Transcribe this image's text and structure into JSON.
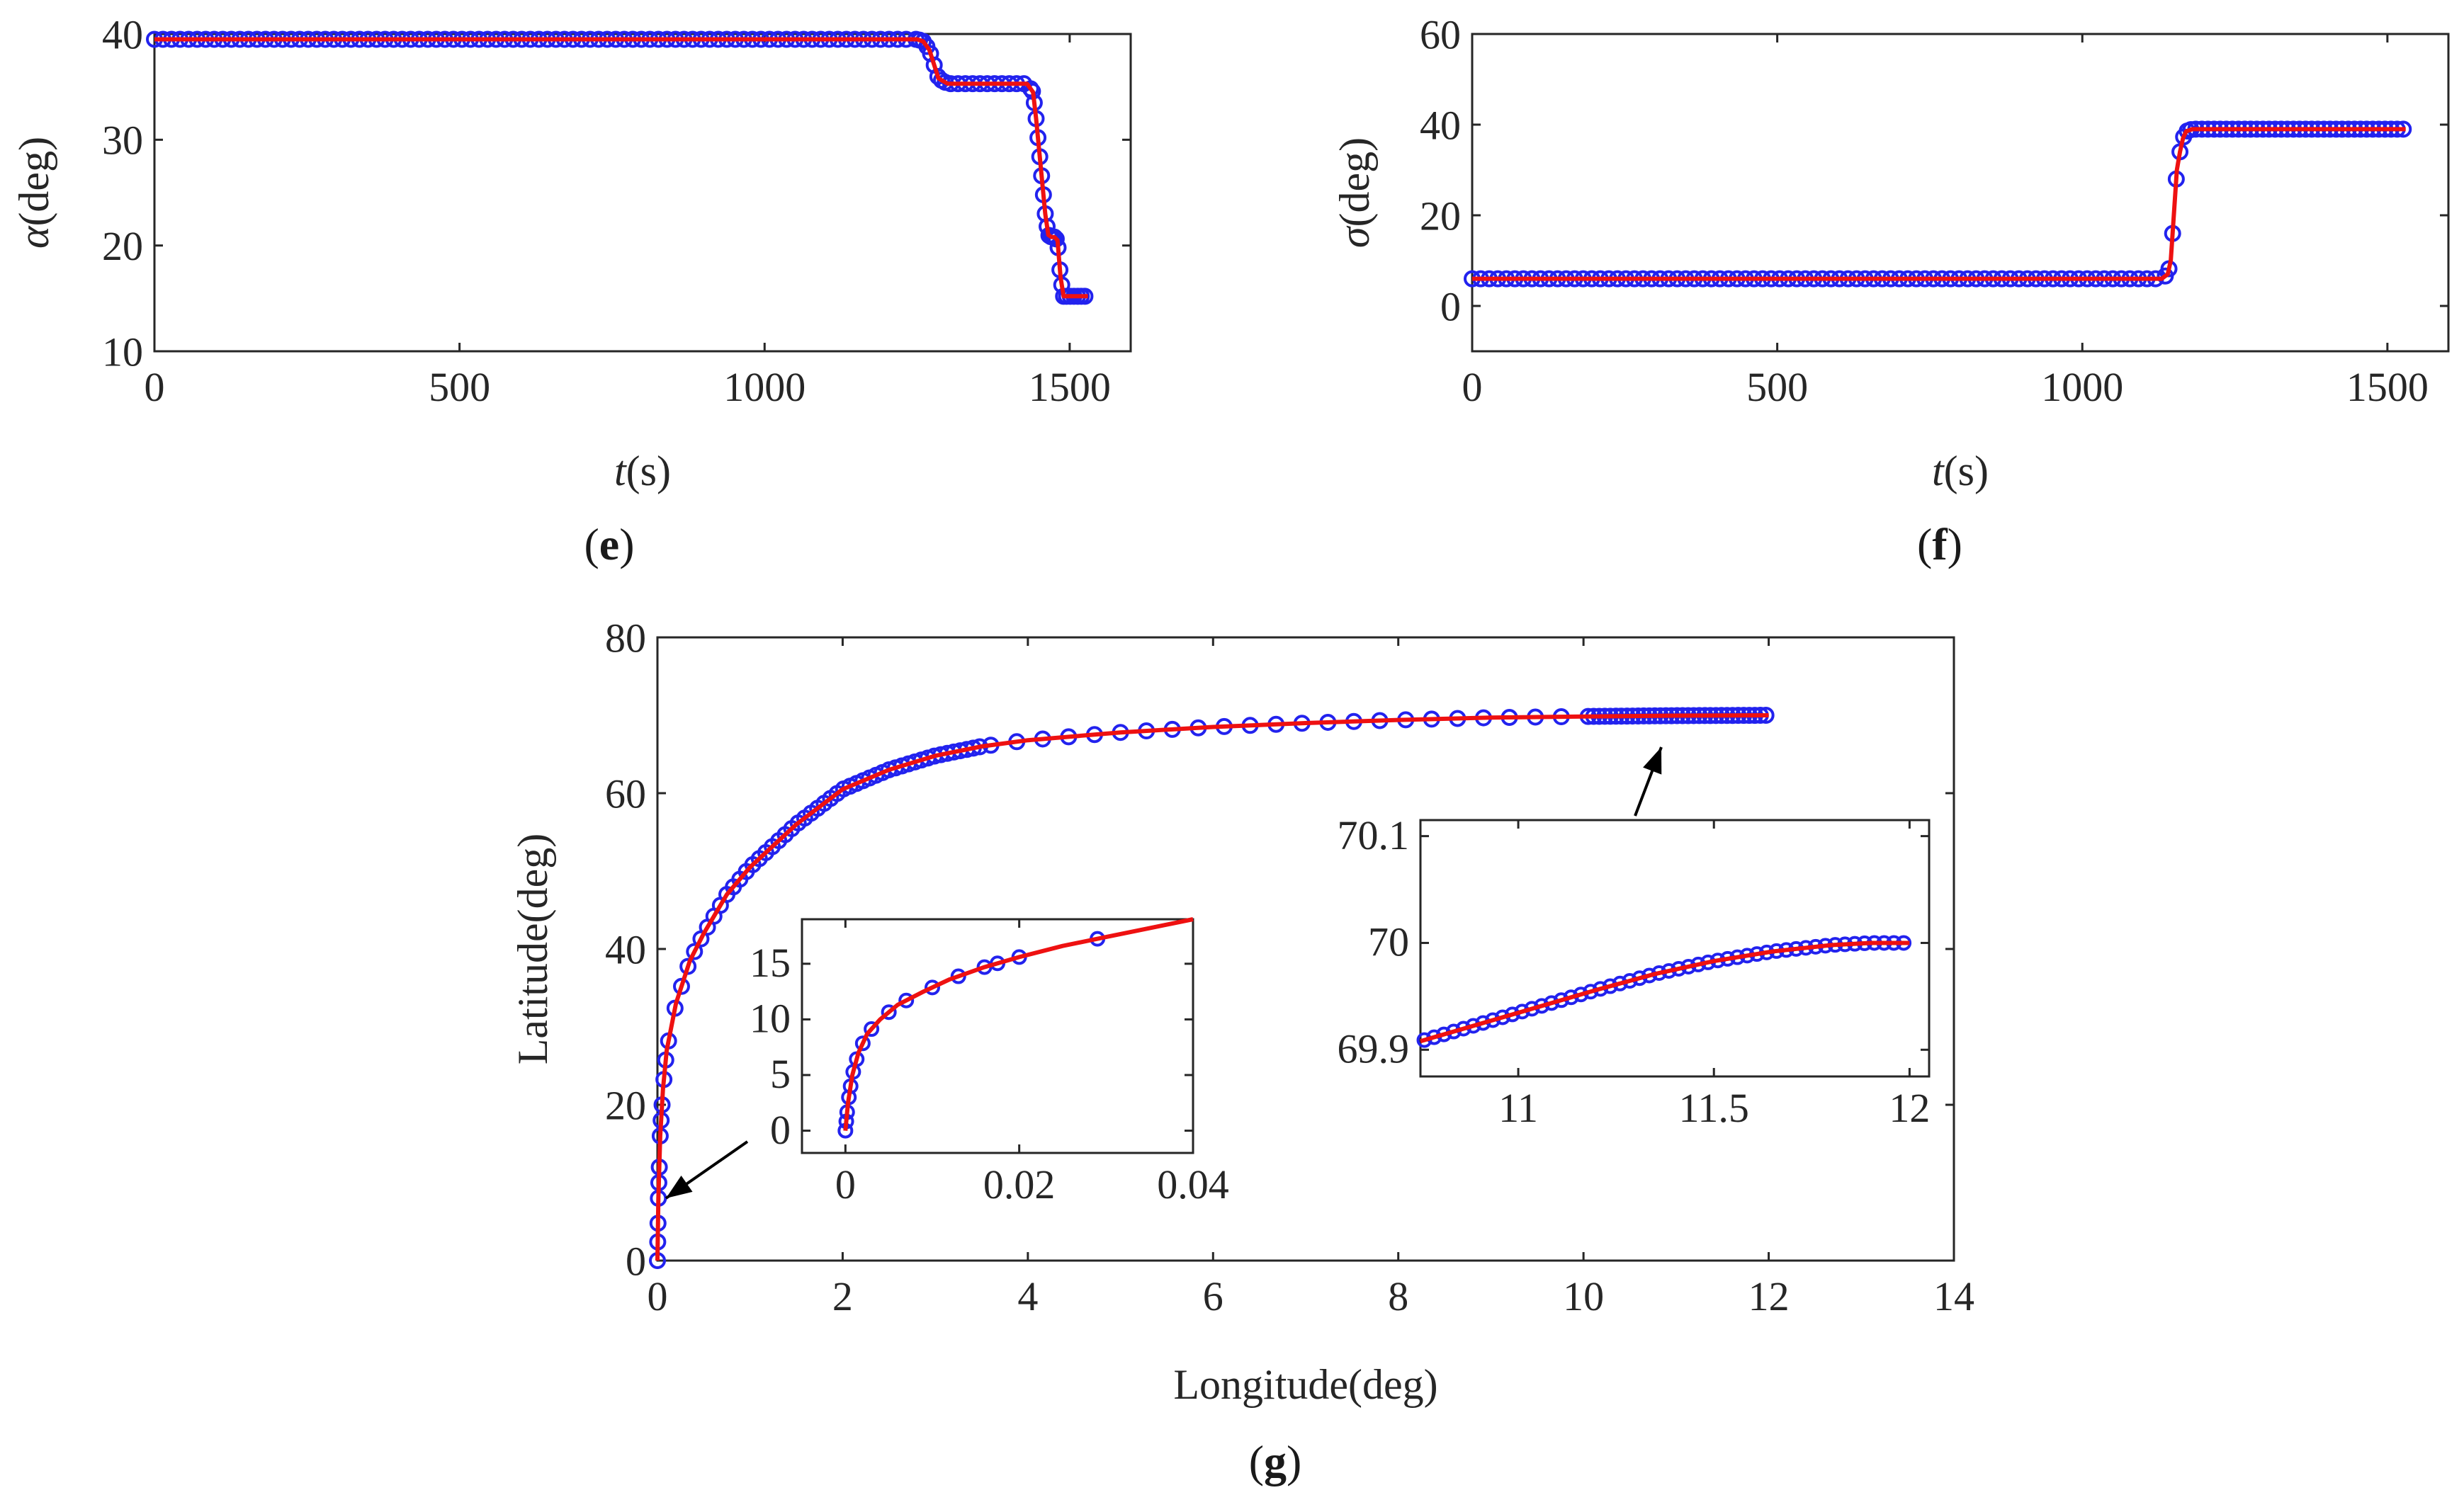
{
  "chart_data": [
    {
      "panel_label": "e",
      "type": "line",
      "xlabel_var": "t",
      "xlabel_unit": "(s)",
      "ylabel_var": "α",
      "ylabel_unit": "(deg)",
      "xlim": [
        0,
        1600
      ],
      "ylim": [
        10,
        40
      ],
      "xticks": [
        0,
        500,
        1000,
        1500
      ],
      "yticks": [
        10,
        20,
        30,
        40
      ],
      "line_x": [
        0,
        1250,
        1260,
        1270,
        1285,
        1300,
        1430,
        1440,
        1445,
        1450,
        1455,
        1460,
        1465,
        1470,
        1475,
        1480,
        1485,
        1490,
        1530
      ],
      "line_y": [
        39.5,
        39.5,
        39.3,
        38.5,
        35.8,
        35.3,
        35.3,
        34.5,
        32,
        29,
        26,
        23,
        21,
        20.8,
        20.8,
        20.5,
        17,
        15.2,
        15.2
      ],
      "markers": {
        "color": "#2222ee",
        "line_color": "#ee1111"
      }
    },
    {
      "panel_label": "f",
      "type": "line",
      "xlabel_var": "t",
      "xlabel_unit": "(s)",
      "ylabel_var": "σ",
      "ylabel_unit": "(deg)",
      "xlim": [
        0,
        1600
      ],
      "ylim": [
        -10,
        60
      ],
      "xticks": [
        0,
        500,
        1000,
        1500
      ],
      "yticks": [
        0,
        20,
        40,
        60
      ],
      "line_x": [
        0,
        1130,
        1140,
        1145,
        1150,
        1155,
        1160,
        1165,
        1170,
        1180,
        1190,
        1530
      ],
      "line_y": [
        6,
        6,
        7,
        10,
        20,
        30,
        34,
        37,
        38.5,
        39,
        39,
        39
      ],
      "markers": {
        "color": "#2222ee",
        "line_color": "#ee1111"
      }
    },
    {
      "panel_label": "g",
      "type": "line",
      "xlabel": "Longitude(deg)",
      "ylabel": "Latitude(deg)",
      "xlim": [
        0,
        14
      ],
      "ylim": [
        0,
        80
      ],
      "xticks": [
        0,
        2,
        4,
        6,
        8,
        10,
        12,
        14
      ],
      "yticks": [
        0,
        20,
        40,
        60,
        80
      ],
      "line_x": [
        0,
        0.01,
        0.03,
        0.06,
        0.1,
        0.2,
        0.35,
        0.5,
        0.75,
        1,
        1.5,
        2,
        2.5,
        3,
        3.5,
        4,
        5,
        6,
        7,
        8,
        9,
        10,
        11,
        12
      ],
      "line_y": [
        0,
        8,
        16,
        22,
        27,
        33,
        38.5,
        42,
        47,
        50.5,
        56,
        60.5,
        63,
        64.8,
        66,
        66.8,
        67.8,
        68.5,
        69,
        69.4,
        69.7,
        69.85,
        69.95,
        70
      ],
      "insets": [
        {
          "name": "inset-origin",
          "xlim": [
            -0.005,
            0.04
          ],
          "ylim": [
            -2,
            19
          ],
          "xticks": [
            0,
            0.02,
            0.04
          ],
          "xtick_labels": [
            "0",
            "0.02",
            "0.04"
          ],
          "yticks": [
            0,
            5,
            10,
            15
          ],
          "line_x": [
            0,
            0.0003,
            0.0008,
            0.0015,
            0.0025,
            0.004,
            0.006,
            0.009,
            0.012,
            0.016,
            0.02,
            0.025,
            0.03,
            0.035,
            0.04
          ],
          "line_y": [
            0,
            2.5,
            5,
            7,
            8.7,
            10,
            11.3,
            12.5,
            13.6,
            14.7,
            15.6,
            16.6,
            17.4,
            18.2,
            19
          ]
        },
        {
          "name": "inset-end",
          "xlim": [
            10.75,
            12.05
          ],
          "ylim": [
            69.875,
            70.115
          ],
          "xticks": [
            11,
            11.5,
            12
          ],
          "xtick_labels": [
            "11",
            "11.5",
            "12"
          ],
          "yticks": [
            69.9,
            70,
            70.1
          ],
          "ytick_labels": [
            "69.9",
            "70",
            "70.1"
          ],
          "line_x": [
            10.75,
            10.9,
            11.05,
            11.2,
            11.35,
            11.5,
            11.65,
            11.8,
            11.9,
            12
          ],
          "line_y": [
            69.908,
            69.924,
            69.94,
            69.956,
            69.971,
            69.983,
            69.992,
            69.998,
            70,
            70
          ]
        }
      ]
    }
  ]
}
